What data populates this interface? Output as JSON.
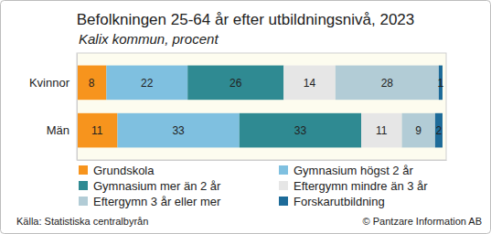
{
  "chart_data": {
    "type": "bar",
    "orientation": "horizontal",
    "stacked": true,
    "data_labels": true,
    "tick_labels": "y",
    "legend": "bottom",
    "title": "Befolkningen 25-64 år efter utbildningsnivå, 2023",
    "subtitle": "Kalix kommun, procent",
    "annotations": [
      "Källa: Statistiska centralbyrån",
      "© Pantzare Information AB"
    ],
    "categories": [
      "Kvinnor",
      "Män"
    ],
    "xlim": [
      0,
      100
    ],
    "series": [
      {
        "name": "Grundskola",
        "color": "#f7941d",
        "values": [
          8,
          11
        ]
      },
      {
        "name": "Gymnasium högst 2 år",
        "color": "#7fc0e0",
        "values": [
          22,
          33
        ]
      },
      {
        "name": "Gymnasium mer än 2 år",
        "color": "#2f8a92",
        "values": [
          26,
          33
        ]
      },
      {
        "name": "Eftergymn mindre än 3 år",
        "color": "#e6e6e6",
        "values": [
          14,
          11
        ]
      },
      {
        "name": "Eftergymn 3 år eller mer",
        "color": "#b2ccd6",
        "values": [
          28,
          9
        ]
      },
      {
        "name": "Forskarutbildning",
        "color": "#1d6b99",
        "values": [
          1,
          2
        ]
      }
    ]
  }
}
